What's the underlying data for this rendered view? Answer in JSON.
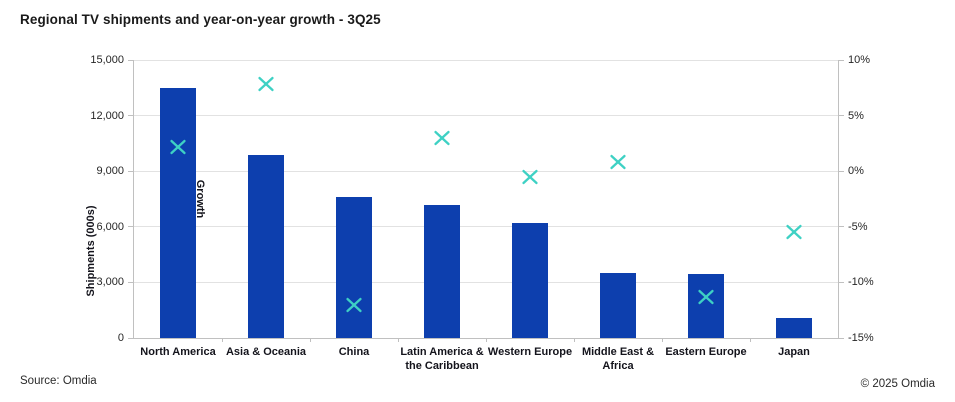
{
  "title": "Regional TV shipments and year-on-year growth - 3Q25",
  "footer": {
    "source": "Source: Omdia",
    "copyright": "© 2025 Omdia"
  },
  "colors": {
    "bar": "#0d3fae",
    "marker": "#3ed1c4",
    "gridline": "#e2e2e2",
    "axis_line": "#c0c0c0",
    "text": "#1a1a1a"
  },
  "chart_data": {
    "type": "bar",
    "subtype": "combo-bar-with-scatter-x-markers",
    "title": "Regional TV shipments and year-on-year growth - 3Q25",
    "categories": [
      "North America",
      "Asia & Oceania",
      "China",
      "Latin America & the Caribbean",
      "Western Europe",
      "Middle East & Africa",
      "Eastern Europe",
      "Japan"
    ],
    "series": [
      {
        "name": "Shipments (000s)",
        "type": "bar",
        "axis": "left",
        "values": [
          13500,
          9900,
          7600,
          7150,
          6200,
          3500,
          3450,
          1100
        ]
      },
      {
        "name": "Growth",
        "type": "scatter",
        "marker": "x",
        "axis": "right",
        "values": [
          2.2,
          7.8,
          -12.0,
          3.0,
          -0.5,
          0.8,
          -11.3,
          -5.5
        ]
      }
    ],
    "left_axis": {
      "label": "Shipments (000s)",
      "min": 0,
      "max": 15000,
      "tick_step": 3000,
      "tick_labels": [
        "15,000",
        "12,000",
        "9,000",
        "6,000",
        "3,000",
        "0"
      ]
    },
    "right_axis": {
      "label": "Growth",
      "min": -15,
      "max": 10,
      "tick_step": 5,
      "tick_labels": [
        "10%",
        "5%",
        "0%",
        "-5%",
        "-10%",
        "-15%"
      ]
    },
    "grid": true,
    "legend_position": "none"
  }
}
